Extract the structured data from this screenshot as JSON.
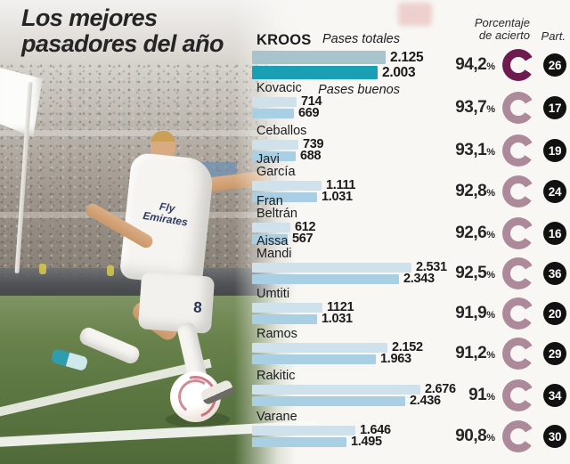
{
  "title": {
    "line1": "Los mejores",
    "line2": "pasadores del año"
  },
  "headers": {
    "accuracy": "Porcentaje\nde acierto",
    "part": "Part."
  },
  "labels": {
    "total_passes": "Pases totales",
    "good_passes": "Pases buenos",
    "pct_suffix": "%"
  },
  "players": [
    {
      "name": "KROOS",
      "total_label": "2.125",
      "good_label": "2.003",
      "total": 2125,
      "good": 2003,
      "pct": "94,2",
      "part": "26"
    },
    {
      "name": "Kovacic",
      "total_label": "714",
      "good_label": "669",
      "total": 714,
      "good": 669,
      "pct": "93,7",
      "part": "17"
    },
    {
      "name": "Ceballos",
      "total_label": "739",
      "good_label": "688",
      "total": 739,
      "good": 688,
      "pct": "93,1",
      "part": "19"
    },
    {
      "name": "Javi\nGarcía",
      "total_label": "1.111",
      "good_label": "1.031",
      "total": 1111,
      "good": 1031,
      "pct": "92,8",
      "part": "24"
    },
    {
      "name": "Fran\nBeltrán",
      "total_label": "612",
      "good_label": "567",
      "total": 612,
      "good": 567,
      "pct": "92,6",
      "part": "16"
    },
    {
      "name": "Aissa\nMandi",
      "total_label": "2.531",
      "good_label": "2.343",
      "total": 2531,
      "good": 2343,
      "pct": "92,5",
      "part": "36"
    },
    {
      "name": "Umtiti",
      "total_label": "1121",
      "good_label": "1.031",
      "total": 1121,
      "good": 1031,
      "pct": "91,9",
      "part": "20"
    },
    {
      "name": "Ramos",
      "total_label": "2.152",
      "good_label": "1.963",
      "total": 2152,
      "good": 1963,
      "pct": "91,2",
      "part": "29"
    },
    {
      "name": "Rakitic",
      "total_label": "2.676",
      "good_label": "2.436",
      "total": 2676,
      "good": 2436,
      "pct": "91",
      "part": "34"
    },
    {
      "name": "Varane",
      "total_label": "1.646",
      "good_label": "1.495",
      "total": 1646,
      "good": 1495,
      "pct": "90,8",
      "part": "30"
    }
  ],
  "photo": {
    "sponsor": "Fly\nEmirates",
    "jersey_number": "8"
  },
  "colors": {
    "bar_total": "#cfe2ec",
    "bar_good": "#a8cfe3",
    "kroos_bar_total": "#a7c4cd",
    "kroos_bar_good": "#1a9fb5",
    "ring": "#ad8a99",
    "ring_highlight": "#6e1b50",
    "badge": "#111111"
  },
  "chart_data": {
    "type": "bar",
    "orientation": "horizontal",
    "title": "Los mejores pasadores del año",
    "categories": [
      "Kroos",
      "Kovacic",
      "Ceballos",
      "Javi García",
      "Fran Beltrán",
      "Aissa Mandi",
      "Umtiti",
      "Ramos",
      "Rakitic",
      "Varane"
    ],
    "series": [
      {
        "name": "Pases totales",
        "values": [
          2125,
          714,
          739,
          1111,
          612,
          2531,
          1121,
          2152,
          2676,
          1646
        ]
      },
      {
        "name": "Pases buenos",
        "values": [
          2003,
          669,
          688,
          1031,
          567,
          2343,
          1031,
          1963,
          2436,
          1495
        ]
      }
    ],
    "accuracy_pct": [
      94.2,
      93.7,
      93.1,
      92.8,
      92.6,
      92.5,
      91.9,
      91.2,
      91,
      90.8
    ],
    "participations": [
      26,
      17,
      19,
      24,
      16,
      36,
      20,
      29,
      34,
      30
    ],
    "xlim": [
      0,
      2700
    ],
    "grid": false,
    "legend_position": "inline-first-row"
  }
}
